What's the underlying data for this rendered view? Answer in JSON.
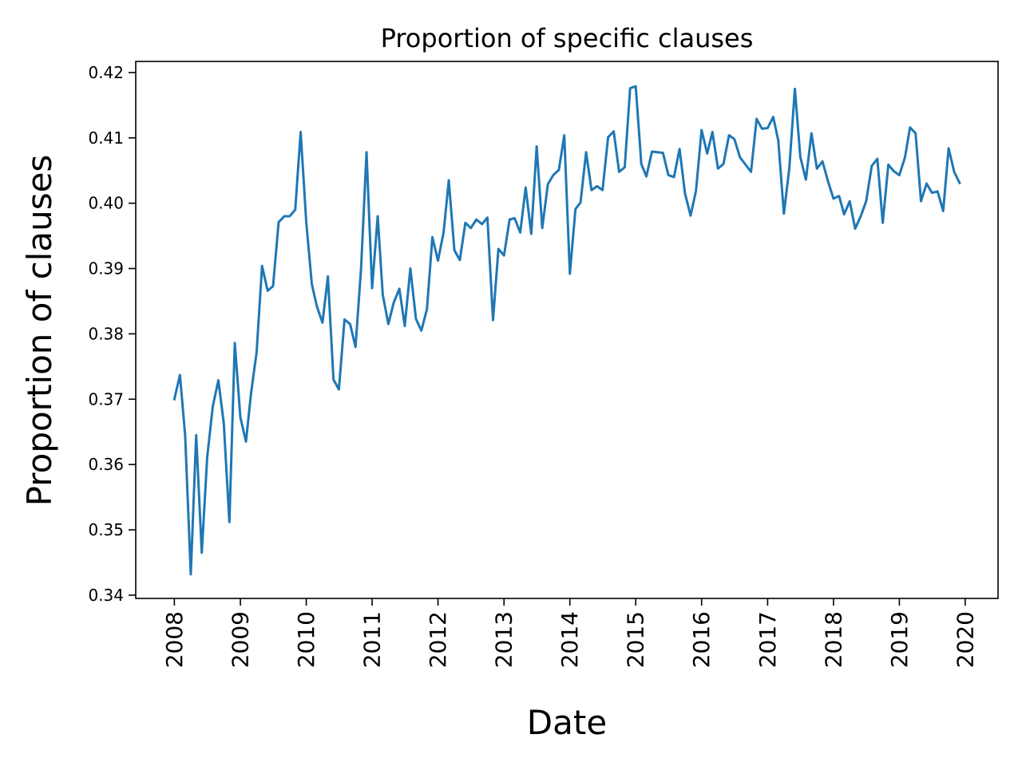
{
  "chart_data": {
    "type": "line",
    "title": "Proportion of specific clauses",
    "xlabel": "Date",
    "ylabel": "Proportion of clauses",
    "xlim": [
      "2007-06-01",
      "2020-07-01"
    ],
    "ylim": [
      0.3395,
      0.4217
    ],
    "x_ticks": [
      "2008",
      "2009",
      "2010",
      "2011",
      "2012",
      "2013",
      "2014",
      "2015",
      "2016",
      "2017",
      "2018",
      "2019",
      "2020"
    ],
    "y_ticks": [
      "0.34",
      "0.35",
      "0.36",
      "0.37",
      "0.38",
      "0.39",
      "0.40",
      "0.41",
      "0.42"
    ],
    "grid": false,
    "legend": "none",
    "line_color": "#1f77b4",
    "series": [
      {
        "x": [
          "2008-01",
          "2008-02",
          "2008-03",
          "2008-04",
          "2008-05",
          "2008-06",
          "2008-07",
          "2008-08",
          "2008-09",
          "2008-10",
          "2008-11",
          "2008-12",
          "2009-01",
          "2009-02",
          "2009-03",
          "2009-04",
          "2009-05",
          "2009-06",
          "2009-07",
          "2009-08",
          "2009-09",
          "2009-10",
          "2009-11",
          "2009-12",
          "2010-01",
          "2010-02",
          "2010-03",
          "2010-04",
          "2010-05",
          "2010-06",
          "2010-07",
          "2010-08",
          "2010-09",
          "2010-10",
          "2010-11",
          "2010-12",
          "2011-01",
          "2011-02",
          "2011-03",
          "2011-04",
          "2011-05",
          "2011-06",
          "2011-07",
          "2011-08",
          "2011-09",
          "2011-10",
          "2011-11",
          "2011-12",
          "2012-01",
          "2012-02",
          "2012-03",
          "2012-04",
          "2012-05",
          "2012-06",
          "2012-07",
          "2012-08",
          "2012-09",
          "2012-10",
          "2012-11",
          "2012-12",
          "2013-01",
          "2013-02",
          "2013-03",
          "2013-04",
          "2013-05",
          "2013-06",
          "2013-07",
          "2013-08",
          "2013-09",
          "2013-10",
          "2013-11",
          "2013-12",
          "2014-01",
          "2014-02",
          "2014-03",
          "2014-04",
          "2014-05",
          "2014-06",
          "2014-07",
          "2014-08",
          "2014-09",
          "2014-10",
          "2014-11",
          "2014-12",
          "2015-01",
          "2015-02",
          "2015-03",
          "2015-04",
          "2015-05",
          "2015-06",
          "2015-07",
          "2015-08",
          "2015-09",
          "2015-10",
          "2015-11",
          "2015-12",
          "2016-01",
          "2016-02",
          "2016-03",
          "2016-04",
          "2016-05",
          "2016-06",
          "2016-07",
          "2016-08",
          "2016-09",
          "2016-10",
          "2016-11",
          "2016-12",
          "2017-01",
          "2017-02",
          "2017-03",
          "2017-04",
          "2017-05",
          "2017-06",
          "2017-07",
          "2017-08",
          "2017-09",
          "2017-10",
          "2017-11",
          "2017-12",
          "2018-01",
          "2018-02",
          "2018-03",
          "2018-04",
          "2018-05",
          "2018-06",
          "2018-07",
          "2018-08",
          "2018-09",
          "2018-10",
          "2018-11",
          "2018-12",
          "2019-01",
          "2019-02",
          "2019-03",
          "2019-04",
          "2019-05",
          "2019-06",
          "2019-07",
          "2019-08",
          "2019-09",
          "2019-10",
          "2019-11",
          "2019-12"
        ],
        "values": [
          0.37,
          0.3737,
          0.3644,
          0.3432,
          0.3645,
          0.3465,
          0.3611,
          0.3689,
          0.3729,
          0.3663,
          0.3512,
          0.3786,
          0.3672,
          0.3635,
          0.3709,
          0.3772,
          0.3904,
          0.3866,
          0.3873,
          0.3971,
          0.398,
          0.398,
          0.399,
          0.4109,
          0.3971,
          0.3876,
          0.3842,
          0.3817,
          0.3888,
          0.373,
          0.3715,
          0.3822,
          0.3815,
          0.378,
          0.3901,
          0.4078,
          0.387,
          0.398,
          0.386,
          0.3815,
          0.3848,
          0.3869,
          0.3812,
          0.39,
          0.3823,
          0.3805,
          0.3838,
          0.3948,
          0.3912,
          0.3955,
          0.4035,
          0.3928,
          0.3913,
          0.397,
          0.3962,
          0.3975,
          0.3968,
          0.3978,
          0.3821,
          0.393,
          0.392,
          0.3975,
          0.3977,
          0.3955,
          0.4024,
          0.3953,
          0.4087,
          0.3962,
          0.4029,
          0.4043,
          0.4051,
          0.4104,
          0.3892,
          0.3991,
          0.4001,
          0.4078,
          0.402,
          0.4026,
          0.402,
          0.4101,
          0.411,
          0.4048,
          0.4055,
          0.4176,
          0.4179,
          0.406,
          0.4041,
          0.4079,
          0.4078,
          0.4077,
          0.4043,
          0.404,
          0.4083,
          0.4015,
          0.3981,
          0.4019,
          0.4112,
          0.4076,
          0.4109,
          0.4053,
          0.406,
          0.4104,
          0.4098,
          0.407,
          0.4059,
          0.4048,
          0.4129,
          0.4114,
          0.4115,
          0.4132,
          0.4096,
          0.3984,
          0.4053,
          0.4175,
          0.4071,
          0.4036,
          0.4107,
          0.4053,
          0.4064,
          0.4034,
          0.4007,
          0.4011,
          0.3983,
          0.4003,
          0.3961,
          0.398,
          0.4003,
          0.4057,
          0.4068,
          0.397,
          0.4059,
          0.4049,
          0.4043,
          0.407,
          0.4116,
          0.4107,
          0.4003,
          0.403,
          0.4016,
          0.4018,
          0.3988,
          0.4084,
          0.4048,
          0.4031
        ]
      }
    ]
  }
}
